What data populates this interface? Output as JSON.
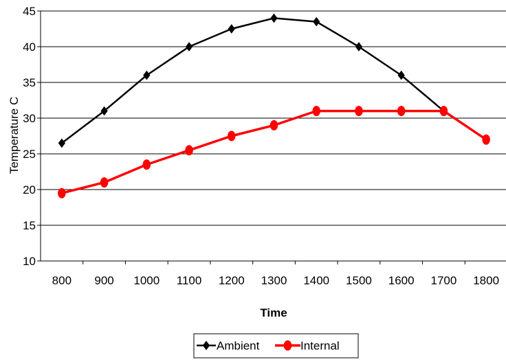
{
  "chart_data": {
    "type": "line",
    "title": "",
    "xlabel": "Time",
    "ylabel": "Temperature C",
    "categories": [
      "800",
      "900",
      "1000",
      "1100",
      "1200",
      "1300",
      "1400",
      "1500",
      "1600",
      "1700",
      "1800"
    ],
    "ylim": [
      10,
      45
    ],
    "yticks": [
      "10",
      "15",
      "20",
      "25",
      "30",
      "35",
      "40",
      "45"
    ],
    "grid": true,
    "legend_position": "bottom",
    "series": [
      {
        "name": "Ambient",
        "color": "#000000",
        "marker": "diamond",
        "values": [
          26.5,
          31,
          36,
          40,
          42.5,
          44,
          43.5,
          40,
          36,
          31,
          null
        ]
      },
      {
        "name": "Internal",
        "color": "#ff0000",
        "marker": "circle",
        "values": [
          19.5,
          21,
          23.5,
          25.5,
          27.5,
          29,
          31,
          31,
          31,
          31,
          27
        ]
      }
    ]
  }
}
